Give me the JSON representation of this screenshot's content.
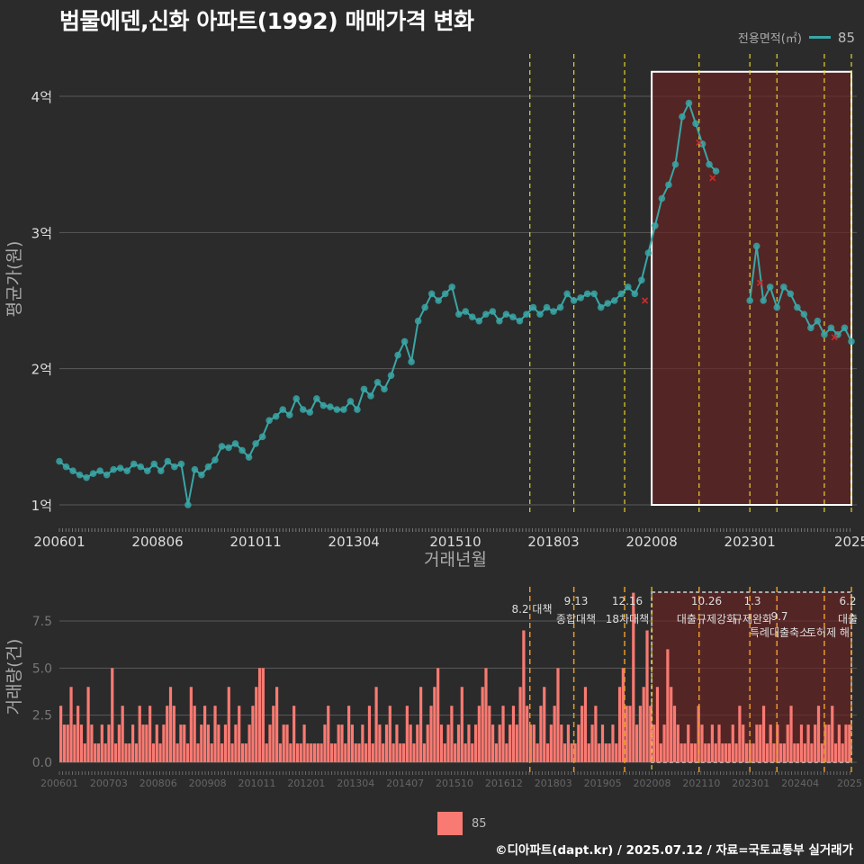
{
  "title": "범물에덴,신화 아파트(1992) 매매가격 변화",
  "legend": {
    "title": "전용면적(㎡)",
    "series": "85"
  },
  "footer": "©디아파트(dapt.kr) / 2025.07.12 / 자료=국토교통부 실거래가",
  "colors": {
    "line": "#3aa6a6",
    "bar": "#f87a72",
    "policy_line": "#e6d42a",
    "highlight": "#6a2222",
    "cancel_mark": "#d12a2a"
  },
  "chart_data": [
    {
      "type": "line",
      "xlabel": "거래년월",
      "ylabel": "평균가(원)",
      "x_range": [
        "2006-01",
        "2025-07"
      ],
      "ylim": [
        1.0,
        4.2
      ],
      "y_ticks": [
        1,
        2,
        3,
        4
      ],
      "y_tick_labels": [
        "1억",
        "2억",
        "3억",
        "4억"
      ],
      "x_ticks": [
        "2006-01",
        "2008-06",
        "2010-11",
        "2013-04",
        "2015-10",
        "2018-03",
        "2020-08",
        "2023-01",
        "2025-07"
      ],
      "x_tick_labels": [
        "200601",
        "200806",
        "201011",
        "201304",
        "201510",
        "201803",
        "202008",
        "202301",
        "2025"
      ],
      "policy_dates": [
        "2017-08",
        "2018-09",
        "2019-12",
        "2021-10",
        "2023-01",
        "2023-09",
        "2024-11",
        "2025-07"
      ],
      "highlight_range": [
        "2020-08",
        "2025-07"
      ],
      "series": [
        {
          "name": "85",
          "points": [
            [
              "2006-01",
              1.32
            ],
            [
              "2006-03",
              1.28
            ],
            [
              "2006-05",
              1.25
            ],
            [
              "2006-07",
              1.22
            ],
            [
              "2006-09",
              1.2
            ],
            [
              "2006-11",
              1.23
            ],
            [
              "2007-01",
              1.25
            ],
            [
              "2007-03",
              1.22
            ],
            [
              "2007-05",
              1.26
            ],
            [
              "2007-07",
              1.27
            ],
            [
              "2007-09",
              1.25
            ],
            [
              "2007-11",
              1.3
            ],
            [
              "2008-01",
              1.28
            ],
            [
              "2008-03",
              1.25
            ],
            [
              "2008-05",
              1.3
            ],
            [
              "2008-07",
              1.25
            ],
            [
              "2008-09",
              1.32
            ],
            [
              "2008-11",
              1.28
            ],
            [
              "2009-01",
              1.3
            ],
            [
              "2009-03",
              1.0
            ],
            [
              "2009-05",
              1.26
            ],
            [
              "2009-07",
              1.22
            ],
            [
              "2009-09",
              1.28
            ],
            [
              "2009-11",
              1.33
            ],
            [
              "2010-01",
              1.43
            ],
            [
              "2010-03",
              1.42
            ],
            [
              "2010-05",
              1.45
            ],
            [
              "2010-07",
              1.4
            ],
            [
              "2010-09",
              1.35
            ],
            [
              "2010-11",
              1.45
            ],
            [
              "2011-01",
              1.5
            ],
            [
              "2011-03",
              1.62
            ],
            [
              "2011-05",
              1.65
            ],
            [
              "2011-07",
              1.7
            ],
            [
              "2011-09",
              1.66
            ],
            [
              "2011-11",
              1.78
            ],
            [
              "2012-01",
              1.7
            ],
            [
              "2012-03",
              1.68
            ],
            [
              "2012-05",
              1.78
            ],
            [
              "2012-07",
              1.73
            ],
            [
              "2012-09",
              1.72
            ],
            [
              "2012-11",
              1.7
            ],
            [
              "2013-01",
              1.7
            ],
            [
              "2013-03",
              1.76
            ],
            [
              "2013-05",
              1.7
            ],
            [
              "2013-07",
              1.85
            ],
            [
              "2013-09",
              1.8
            ],
            [
              "2013-11",
              1.9
            ],
            [
              "2014-01",
              1.85
            ],
            [
              "2014-03",
              1.95
            ],
            [
              "2014-05",
              2.1
            ],
            [
              "2014-07",
              2.2
            ],
            [
              "2014-09",
              2.05
            ],
            [
              "2014-11",
              2.35
            ],
            [
              "2015-01",
              2.45
            ],
            [
              "2015-03",
              2.55
            ],
            [
              "2015-05",
              2.5
            ],
            [
              "2015-07",
              2.55
            ],
            [
              "2015-09",
              2.6
            ],
            [
              "2015-11",
              2.4
            ],
            [
              "2016-01",
              2.42
            ],
            [
              "2016-03",
              2.38
            ],
            [
              "2016-05",
              2.35
            ],
            [
              "2016-07",
              2.4
            ],
            [
              "2016-09",
              2.42
            ],
            [
              "2016-11",
              2.35
            ],
            [
              "2017-01",
              2.4
            ],
            [
              "2017-03",
              2.38
            ],
            [
              "2017-05",
              2.35
            ],
            [
              "2017-07",
              2.4
            ],
            [
              "2017-09",
              2.45
            ],
            [
              "2017-11",
              2.4
            ],
            [
              "2018-01",
              2.45
            ],
            [
              "2018-03",
              2.42
            ],
            [
              "2018-05",
              2.45
            ],
            [
              "2018-07",
              2.55
            ],
            [
              "2018-09",
              2.5
            ],
            [
              "2018-11",
              2.52
            ],
            [
              "2019-01",
              2.55
            ],
            [
              "2019-03",
              2.55
            ],
            [
              "2019-05",
              2.45
            ],
            [
              "2019-07",
              2.48
            ],
            [
              "2019-09",
              2.5
            ],
            [
              "2019-11",
              2.55
            ],
            [
              "2020-01",
              2.6
            ],
            [
              "2020-03",
              2.55
            ],
            [
              "2020-05",
              2.65
            ],
            [
              "2020-07",
              2.85
            ],
            [
              "2020-09",
              3.05
            ],
            [
              "2020-11",
              3.25
            ],
            [
              "2021-01",
              3.35
            ],
            [
              "2021-03",
              3.5
            ],
            [
              "2021-05",
              3.85
            ],
            [
              "2021-07",
              3.95
            ],
            [
              "2021-09",
              3.8
            ],
            [
              "2021-11",
              3.65
            ],
            [
              "2022-01",
              3.5
            ],
            [
              "2022-03",
              3.45
            ],
            [
              "2023-01",
              2.5
            ],
            [
              "2023-03",
              2.9
            ],
            [
              "2023-05",
              2.5
            ],
            [
              "2023-07",
              2.6
            ],
            [
              "2023-09",
              2.45
            ],
            [
              "2023-11",
              2.6
            ],
            [
              "2024-01",
              2.55
            ],
            [
              "2024-03",
              2.45
            ],
            [
              "2024-05",
              2.4
            ],
            [
              "2024-07",
              2.3
            ],
            [
              "2024-09",
              2.35
            ],
            [
              "2024-11",
              2.25
            ],
            [
              "2025-01",
              2.3
            ],
            [
              "2025-03",
              2.25
            ],
            [
              "2025-05",
              2.3
            ],
            [
              "2025-07",
              2.2
            ]
          ]
        }
      ],
      "cancelled_deals": [
        [
          "2020-06",
          2.5
        ],
        [
          "2021-10",
          3.66
        ],
        [
          "2022-02",
          3.4
        ],
        [
          "2023-04",
          2.63
        ],
        [
          "2025-02",
          2.23
        ]
      ]
    },
    {
      "type": "bar",
      "ylabel": "거래량(건)",
      "ylim": [
        0,
        9
      ],
      "y_ticks": [
        0,
        2.5,
        5,
        7.5
      ],
      "y_tick_labels": [
        "0.0",
        "2.5",
        "5.0",
        "7.5"
      ],
      "x_tick_labels": [
        "200601",
        "200703",
        "200806",
        "200908",
        "201011",
        "201201",
        "201304",
        "201407",
        "201510",
        "201612",
        "201803",
        "201905",
        "202008",
        "202110",
        "202301",
        "202404",
        "2025"
      ],
      "series_name": "85",
      "annotations": [
        {
          "date": "2017-08",
          "text": "8.2 대책"
        },
        {
          "date": "2018-09",
          "text": "9.13 종합대책"
        },
        {
          "date": "2019-12",
          "text": "12.16 18차대책"
        },
        {
          "date": "2021-10",
          "text": "10.26 대출규제강화"
        },
        {
          "date": "2023-01",
          "text": "1.3 규제완화"
        },
        {
          "date": "2023-09",
          "text": "9.7 특례대출축소"
        },
        {
          "date": "2024-11",
          "text": "토허제 해"
        },
        {
          "date": "2025-07",
          "text": "6.2 대출"
        }
      ],
      "monthly_counts": [
        3,
        2,
        2,
        4,
        2,
        3,
        2,
        1,
        4,
        2,
        1,
        1,
        2,
        1,
        2,
        5,
        1,
        2,
        3,
        1,
        1,
        2,
        1,
        3,
        2,
        2,
        3,
        1,
        2,
        1,
        2,
        3,
        4,
        3,
        1,
        2,
        2,
        1,
        4,
        3,
        1,
        2,
        3,
        2,
        1,
        3,
        2,
        1,
        2,
        4,
        1,
        2,
        3,
        1,
        1,
        2,
        3,
        4,
        5,
        5,
        1,
        2,
        3,
        4,
        1,
        2,
        2,
        1,
        3,
        1,
        1,
        2,
        1,
        1,
        1,
        1,
        1,
        2,
        3,
        1,
        1,
        2,
        2,
        1,
        3,
        2,
        1,
        1,
        2,
        1,
        3,
        1,
        4,
        2,
        1,
        2,
        3,
        1,
        2,
        1,
        1,
        3,
        2,
        1,
        2,
        4,
        1,
        2,
        3,
        4,
        5,
        2,
        1,
        2,
        3,
        1,
        2,
        4,
        1,
        2,
        1,
        2,
        3,
        4,
        5,
        3,
        2,
        1,
        2,
        3,
        1,
        2,
        3,
        2,
        4,
        7,
        3,
        2,
        2,
        1,
        3,
        4,
        1,
        2,
        3,
        5,
        2,
        1,
        2,
        1,
        1,
        2,
        3,
        4,
        1,
        2,
        3,
        1,
        2,
        1,
        1,
        2,
        1,
        4,
        5,
        3,
        3,
        9,
        2,
        3,
        4,
        7,
        3,
        2,
        4,
        1,
        2,
        6,
        4,
        3,
        2,
        1,
        1,
        2,
        1,
        1,
        3,
        2,
        1,
        1,
        2,
        1,
        2,
        1,
        1,
        1,
        2,
        1,
        3,
        2,
        1,
        1,
        1,
        2,
        2,
        3,
        1,
        2,
        1,
        2,
        1,
        1,
        2,
        3,
        1,
        1,
        2,
        1,
        2,
        1,
        2,
        3,
        1,
        2,
        2,
        3,
        1,
        2,
        1,
        2,
        2
      ]
    }
  ]
}
